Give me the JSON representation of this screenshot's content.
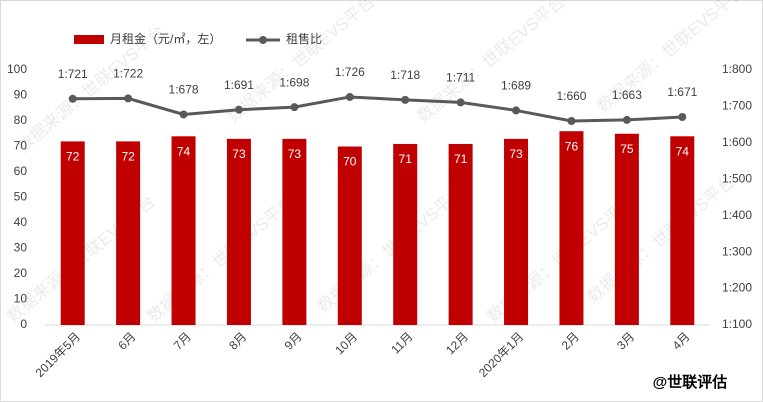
{
  "chart_data": {
    "type": "bar_line",
    "categories": [
      "2019年5月",
      "6月",
      "7月",
      "8月",
      "9月",
      "10月",
      "11月",
      "12月",
      "2020年1月",
      "2月",
      "3月",
      "4月"
    ],
    "series": [
      {
        "name": "月租金（元/㎡，左）",
        "color": "#c00000",
        "type": "bar",
        "values": [
          72,
          72,
          74,
          73,
          73,
          70,
          71,
          71,
          73,
          76,
          75,
          74
        ]
      },
      {
        "name": "租售比",
        "color": "#595959",
        "type": "line",
        "axis": "y2",
        "values": [
          721,
          722,
          678,
          691,
          698,
          726,
          718,
          711,
          689,
          660,
          663,
          671
        ],
        "value_labels": [
          "1:721",
          "1:722",
          "1:678",
          "1:691",
          "1:698",
          "1:726",
          "1:718",
          "1:711",
          "1:689",
          "1:660",
          "1:663",
          "1:671"
        ]
      }
    ],
    "ylim": [
      0,
      100
    ],
    "yticks": [
      0,
      10,
      20,
      30,
      40,
      50,
      60,
      70,
      80,
      90,
      100
    ],
    "y2lim": [
      100,
      800
    ],
    "y2ticks": [
      {
        "value": 100,
        "label": "1:100"
      },
      {
        "value": 200,
        "label": "1:200"
      },
      {
        "value": 300,
        "label": "1:300"
      },
      {
        "value": 400,
        "label": "1:400"
      },
      {
        "value": 500,
        "label": "1:500"
      },
      {
        "value": 600,
        "label": "1:600"
      },
      {
        "value": 700,
        "label": "1:700"
      },
      {
        "value": 800,
        "label": "1:800"
      }
    ],
    "watermark": "数据来源：世联EVS平台",
    "brand": "@世联评估"
  }
}
